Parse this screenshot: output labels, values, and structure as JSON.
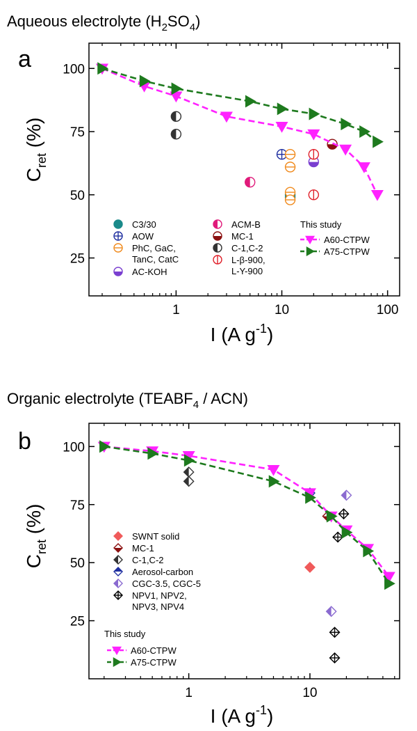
{
  "chart_data": [
    {
      "type": "scatter",
      "panel": "a",
      "title": "Aqueous electrolyte (H2SO4)",
      "title_text": "Aqueous electrolyte (H",
      "title_sub1": "2",
      "title_mid": "SO",
      "title_sub2": "4",
      "title_end": ")",
      "xlabel_main": "I (A g",
      "xlabel_sup": "-1",
      "xlabel_end": ")",
      "ylabel_main": "C",
      "ylabel_sub": "ret",
      "ylabel_end": " (%)",
      "x_scale": "log",
      "xlim": [
        0.15,
        130
      ],
      "ylim": [
        10,
        110
      ],
      "xticks": [
        1,
        10,
        100
      ],
      "xtick_labels": [
        "1",
        "10",
        "100"
      ],
      "yticks": [
        25,
        50,
        75,
        100
      ],
      "ytick_labels": [
        "25",
        "50",
        "75",
        "100"
      ],
      "legend_header": "This study",
      "series": [
        {
          "name": "C3/30",
          "marker": "circle-filled",
          "color": "#1a8a8a",
          "points": [
            [
              12,
              50
            ],
            [
              12,
              49
            ]
          ]
        },
        {
          "name": "AOW",
          "marker": "circle-cross",
          "color": "#1f2fa0",
          "points": [
            [
              10,
              66
            ]
          ]
        },
        {
          "name_lines": [
            "PhC, GaC,",
            "TanC, CatC"
          ],
          "marker": "circle-hline",
          "color": "#f08a1c",
          "points": [
            [
              12,
              66
            ],
            [
              12,
              61
            ],
            [
              12,
              51
            ],
            [
              12,
              48
            ]
          ]
        },
        {
          "name": "AC-KOH",
          "marker": "circle-bottom",
          "color": "#7a3fd0",
          "points": [
            [
              20,
              63
            ]
          ]
        },
        {
          "name": "ACM-B",
          "marker": "circle-left",
          "color": "#e01a7a",
          "points": [
            [
              5,
              55
            ]
          ]
        },
        {
          "name": "MC-1",
          "marker": "circle-bottom",
          "color": "#8b1010",
          "points": [
            [
              30,
              70
            ]
          ]
        },
        {
          "name": "C-1,C-2",
          "marker": "circle-left",
          "color": "#333333",
          "points": [
            [
              1,
              81
            ],
            [
              1,
              74
            ]
          ]
        },
        {
          "name_lines": [
            "L-β-900,",
            "L-Y-900"
          ],
          "marker": "circle-vline",
          "color": "#e0202a",
          "points": [
            [
              20,
              66
            ],
            [
              20,
              50
            ]
          ]
        },
        {
          "name": "A60-CTPW",
          "marker": "triangle-down",
          "color": "#ff22ff",
          "line": "dash",
          "points": [
            [
              0.2,
              100
            ],
            [
              0.5,
              93
            ],
            [
              1,
              89
            ],
            [
              3,
              81
            ],
            [
              10,
              77
            ],
            [
              20,
              74
            ],
            [
              40,
              68
            ],
            [
              60,
              61
            ],
            [
              80,
              50
            ]
          ]
        },
        {
          "name": "A75-CTPW",
          "marker": "triangle-right",
          "color": "#1e7a1e",
          "line": "dash",
          "points": [
            [
              0.2,
              100
            ],
            [
              0.5,
              95
            ],
            [
              1,
              92
            ],
            [
              5,
              87
            ],
            [
              10,
              84
            ],
            [
              20,
              82
            ],
            [
              40,
              78
            ],
            [
              60,
              75
            ],
            [
              80,
              71
            ]
          ]
        }
      ]
    },
    {
      "type": "scatter",
      "panel": "b",
      "title": "Organic electrolyte (TEABF4 / ACN)",
      "title_text": "Organic electrolyte (TEABF",
      "title_sub1": "4",
      "title_end": " / ACN)",
      "xlabel_main": "I (A g",
      "xlabel_sup": "-1",
      "xlabel_end": ")",
      "ylabel_main": "C",
      "ylabel_sub": "ret",
      "ylabel_end": " (%)",
      "x_scale": "log",
      "xlim": [
        0.15,
        55
      ],
      "ylim": [
        0,
        110
      ],
      "xticks": [
        1,
        10
      ],
      "xtick_labels": [
        "1",
        "10"
      ],
      "yticks": [
        25,
        50,
        75,
        100
      ],
      "ytick_labels": [
        "25",
        "50",
        "75",
        "100"
      ],
      "legend_header": "This study",
      "series": [
        {
          "name": "SWNT solid",
          "marker": "diamond-filled",
          "color": "#f05a5a",
          "points": [
            [
              10,
              48
            ]
          ]
        },
        {
          "name": "MC-1",
          "marker": "diamond-bottom",
          "color": "#8b1010",
          "points": [
            [
              14,
              70
            ]
          ]
        },
        {
          "name": "C-1,C-2",
          "marker": "diamond-left",
          "color": "#333333",
          "points": [
            [
              1,
              89
            ],
            [
              1,
              85
            ]
          ]
        },
        {
          "name": "Aerosol-carbon",
          "marker": "diamond-top",
          "color": "#1f2fa0",
          "points": [
            [
              10,
              80
            ]
          ]
        },
        {
          "name": "CGC-3.5, CGC-5",
          "marker": "diamond-left",
          "color": "#8a6ad0",
          "points": [
            [
              20,
              79
            ],
            [
              15,
              29
            ]
          ]
        },
        {
          "name_lines": [
            "NPV1, NPV2,",
            "NPV3, NPV4"
          ],
          "marker": "diamond-cross",
          "color": "#000000",
          "points": [
            [
              19,
              71
            ],
            [
              17,
              61
            ],
            [
              16,
              20
            ],
            [
              16,
              9
            ]
          ]
        },
        {
          "name": "A60-CTPW",
          "marker": "triangle-down",
          "color": "#ff22ff",
          "line": "dash",
          "points": [
            [
              0.2,
              100
            ],
            [
              0.5,
              98
            ],
            [
              1,
              96
            ],
            [
              5,
              90
            ],
            [
              10,
              80
            ],
            [
              15,
              70
            ],
            [
              20,
              64
            ],
            [
              30,
              56
            ],
            [
              45,
              44
            ]
          ]
        },
        {
          "name": "A75-CTPW",
          "marker": "triangle-right",
          "color": "#1e7a1e",
          "line": "dash",
          "points": [
            [
              0.2,
              100
            ],
            [
              0.5,
              97
            ],
            [
              1,
              94
            ],
            [
              5,
              85
            ],
            [
              10,
              78
            ],
            [
              15,
              70
            ],
            [
              20,
              63
            ],
            [
              30,
              55
            ],
            [
              45,
              41
            ]
          ]
        }
      ]
    }
  ]
}
